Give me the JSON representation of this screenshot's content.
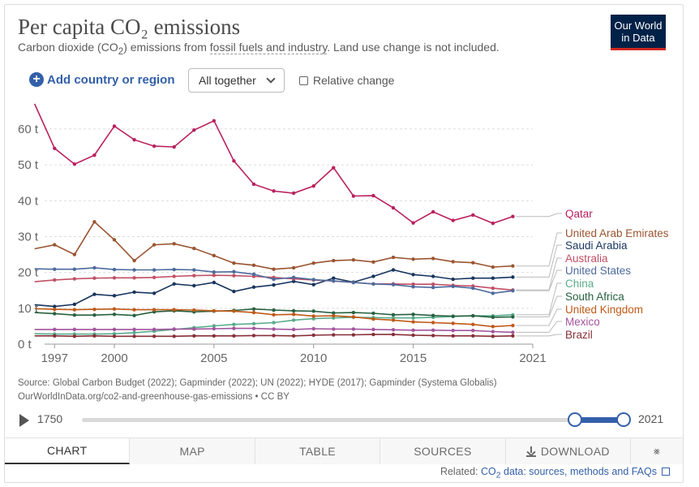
{
  "header": {
    "title": "Per capita CO₂ emissions",
    "subtitle_pre": "Carbon dioxide (CO",
    "subtitle_sub": "2",
    "subtitle_mid": ") emissions from ",
    "subtitle_link": "fossil fuels and industry",
    "subtitle_post": ". Land use change is not included.",
    "logo_line1": "Our World",
    "logo_line2": "in Data"
  },
  "controls": {
    "add_label": "Add country or region",
    "select_value": "All together",
    "relative_change_label": "Relative change"
  },
  "footer": {
    "source": "Source: Global Carbon Budget (2022); Gapminder (2022); UN (2022); HYDE (2017); Gapminder (Systema Globalis)",
    "url_line": "OurWorldInData.org/co2-and-greenhouse-gas-emissions • CC BY"
  },
  "timeline": {
    "start_label": "1750",
    "end_label": "2021",
    "range_start": 1997,
    "range_end": 2021
  },
  "tabs": {
    "chart": "CHART",
    "map": "MAP",
    "table": "TABLE",
    "sources": "SOURCES",
    "download": "DOWNLOAD"
  },
  "related": {
    "prefix": "Related: ",
    "link_pre": "CO",
    "link_sub": "2",
    "link_post": " data: sources, methods and FAQs"
  },
  "chart_data": {
    "type": "line",
    "title": "Per capita CO₂ emissions",
    "ylim": [
      0,
      67
    ],
    "xlim": [
      1996.5,
      2021
    ],
    "y_ticks": [
      0,
      10,
      20,
      30,
      40,
      50,
      60
    ],
    "y_tick_labels": [
      "0 t",
      "10 t",
      "20 t",
      "30 t",
      "40 t",
      "50 t",
      "60 t"
    ],
    "x_ticks": [
      1997,
      2000,
      2005,
      2010,
      2015,
      2021
    ],
    "x_tick_labels": [
      "1997",
      "2000",
      "2005",
      "2010",
      "2015",
      "2021"
    ],
    "grid": "horizontal-dashed",
    "legend": "right-end-labels",
    "x": [
      1996,
      1997,
      1998,
      1999,
      2000,
      2001,
      2002,
      2003,
      2004,
      2005,
      2006,
      2007,
      2008,
      2009,
      2010,
      2011,
      2012,
      2013,
      2014,
      2015,
      2016,
      2017,
      2018,
      2019,
      2020,
      2021
    ],
    "series": [
      {
        "name": "Qatar",
        "color": "#b9205f",
        "values": [
          67,
          54.6,
          50.2,
          52.7,
          60.8,
          57,
          55.2,
          55,
          59.7,
          62.3,
          51.1,
          44.6,
          42.7,
          42.1,
          44.1,
          49.2,
          41.3,
          41.4,
          38,
          33.8,
          36.9,
          34.5,
          36,
          33.7,
          35.6,
          null
        ]
      },
      {
        "name": "United Arab Emirates",
        "color": "#9b5431",
        "values": [
          26.6,
          27.7,
          25,
          34.1,
          29.1,
          23.3,
          27.7,
          28,
          26.7,
          24.7,
          22.6,
          22,
          20.9,
          21.3,
          22.6,
          23.3,
          23.5,
          22.9,
          24.2,
          23.7,
          23.9,
          23,
          22.7,
          21.5,
          21.8,
          null
        ]
      },
      {
        "name": "Saudi Arabia",
        "color": "#18355e",
        "values": [
          11,
          10.5,
          11.1,
          13.9,
          13.5,
          14.5,
          14.2,
          16.8,
          16.3,
          17.2,
          14.7,
          15.9,
          16.5,
          17.5,
          16.6,
          18.4,
          17.3,
          18.9,
          20.7,
          19.4,
          18.9,
          18.1,
          18.4,
          18.4,
          18.7,
          null
        ]
      },
      {
        "name": "Australia",
        "color": "#c15065",
        "values": [
          17.4,
          17.9,
          18.2,
          18.4,
          18.5,
          18.5,
          18.6,
          18.9,
          19.1,
          19.2,
          19.1,
          18.9,
          18.6,
          18.2,
          17.9,
          17.6,
          17.2,
          16.8,
          16.8,
          16.7,
          16.7,
          16.4,
          16.2,
          15.6,
          15.1,
          null
        ]
      },
      {
        "name": "United States",
        "color": "#4c6a9c",
        "values": [
          21,
          20.9,
          20.9,
          21.3,
          20.8,
          20.7,
          20.7,
          20.8,
          20.7,
          20.1,
          20.2,
          19.5,
          18.1,
          18.6,
          18,
          17.6,
          17.2,
          16.8,
          16.6,
          16,
          15.8,
          16.1,
          15.6,
          14.2,
          14.9,
          null
        ]
      },
      {
        "name": "China",
        "color": "#58ac8c",
        "values": [
          2.9,
          2.8,
          2.8,
          2.8,
          2.9,
          3.2,
          3.6,
          4.1,
          4.6,
          5.1,
          5.5,
          5.7,
          6,
          6.7,
          7.1,
          7.3,
          7.5,
          7.4,
          7.3,
          7.3,
          7.5,
          7.7,
          7.9,
          7.9,
          8.2,
          null
        ]
      },
      {
        "name": "South Africa",
        "color": "#286140",
        "values": [
          8.8,
          8.5,
          8.1,
          8.1,
          8.3,
          8,
          9,
          9.3,
          9,
          9.2,
          9.4,
          9.8,
          9.5,
          9.3,
          9.2,
          8.7,
          8.8,
          8.6,
          8.2,
          8.3,
          8,
          7.8,
          7.9,
          7.5,
          7.6,
          null
        ]
      },
      {
        "name": "United Kingdom",
        "color": "#c05917",
        "values": [
          9.9,
          9.7,
          9.6,
          9.7,
          9.8,
          9.6,
          9.6,
          9.6,
          9.5,
          9.3,
          9.2,
          8.8,
          8.2,
          8.3,
          7.8,
          7.9,
          7.6,
          7,
          6.7,
          6.2,
          6,
          5.8,
          5.5,
          4.9,
          5.2,
          null
        ]
      },
      {
        "name": "Mexico",
        "color": "#a2559c",
        "values": [
          4.1,
          4.1,
          4.1,
          4.1,
          4.1,
          4.1,
          4.1,
          4.2,
          4.2,
          4.3,
          4.4,
          4.4,
          4.2,
          4.1,
          4.3,
          4.2,
          4.2,
          4.1,
          4,
          3.9,
          3.9,
          3.8,
          3.8,
          3.5,
          3.3,
          null
        ]
      },
      {
        "name": "Brazil",
        "color": "#883039",
        "values": [
          2.3,
          2.3,
          2.2,
          2.3,
          2.2,
          2.2,
          2.2,
          2.2,
          2.3,
          2.3,
          2.3,
          2.4,
          2.4,
          2.3,
          2.5,
          2.6,
          2.6,
          2.7,
          2.7,
          2.5,
          2.4,
          2.3,
          2.3,
          2.2,
          2.3,
          null
        ]
      }
    ]
  }
}
